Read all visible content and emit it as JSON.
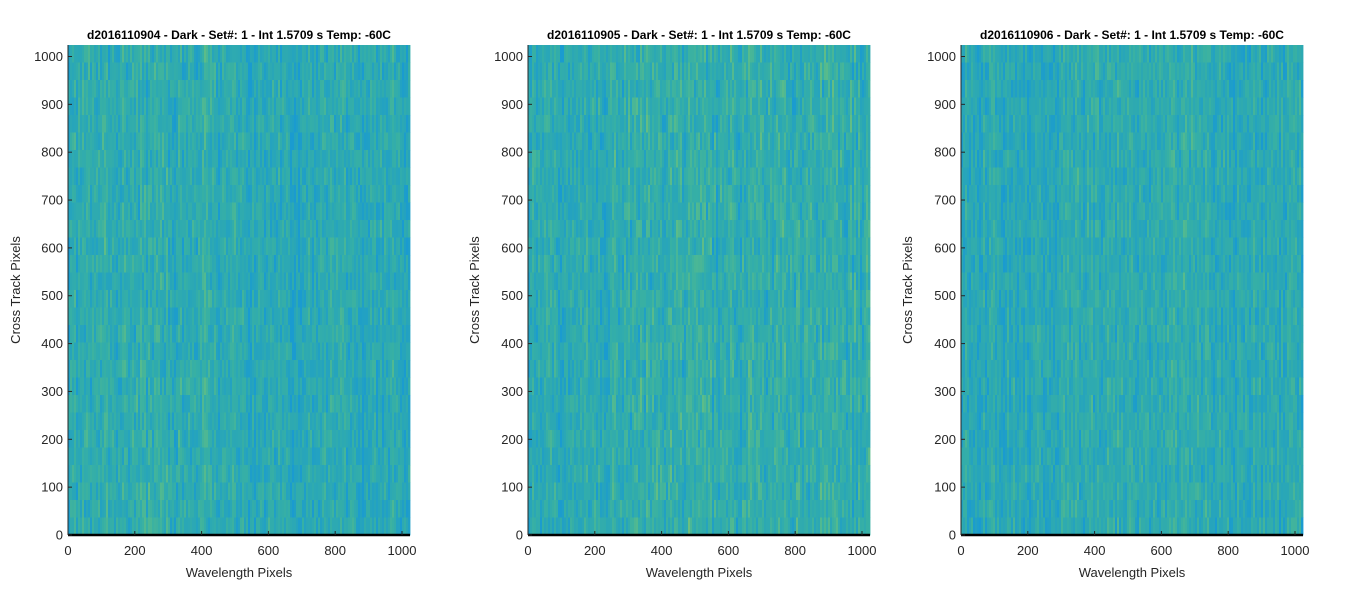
{
  "figure": {
    "background": "#ffffff"
  },
  "colors": {
    "blue": "#1a9bd0",
    "teal": "#2aa7b6",
    "aqua": "#37b0a4",
    "green": "#57bb8c",
    "yellow_green": "#83c36c",
    "axis": "#262626",
    "baseline": "#000000"
  },
  "chart_data": [
    {
      "type": "heatmap",
      "title": "d2016110904 - Dark - Set#: 1 - Int 1.5709 s Temp: -60C",
      "xlabel": "Wavelength Pixels",
      "ylabel": "Cross Track Pixels",
      "xlim": [
        0,
        1024
      ],
      "ylim": [
        0,
        1024
      ],
      "xticks": [
        0,
        200,
        400,
        600,
        800,
        1000
      ],
      "xtick_labels": [
        "0",
        "200",
        "400",
        "600",
        "800",
        "1000"
      ],
      "yticks": [
        0,
        100,
        200,
        300,
        400,
        500,
        600,
        700,
        800,
        900,
        1000
      ],
      "ytick_labels": [
        "0",
        "100",
        "200",
        "300",
        "400",
        "500",
        "600",
        "700",
        "800",
        "900",
        "1000"
      ],
      "colormap": "parula",
      "warm_region_x": [
        50,
        450
      ],
      "intensity": 0.55,
      "seed": 11
    },
    {
      "type": "heatmap",
      "title": "d2016110905 - Dark - Set#: 1 - Int 1.5709 s Temp: -60C",
      "xlabel": "Wavelength Pixels",
      "ylabel": "Cross Track Pixels",
      "xlim": [
        0,
        1024
      ],
      "ylim": [
        0,
        1024
      ],
      "xticks": [
        0,
        200,
        400,
        600,
        800,
        1000
      ],
      "xtick_labels": [
        "0",
        "200",
        "400",
        "600",
        "800",
        "1000"
      ],
      "yticks": [
        0,
        100,
        200,
        300,
        400,
        500,
        600,
        700,
        800,
        900,
        1000
      ],
      "ytick_labels": [
        "0",
        "100",
        "200",
        "300",
        "400",
        "500",
        "600",
        "700",
        "800",
        "900",
        "1000"
      ],
      "colormap": "parula",
      "warm_region_x": [
        250,
        1024
      ],
      "intensity": 0.7,
      "seed": 23
    },
    {
      "type": "heatmap",
      "title": "d2016110906 - Dark - Set#: 1 - Int 1.5709 s Temp: -60C",
      "xlabel": "Wavelength Pixels",
      "ylabel": "Cross Track Pixels",
      "xlim": [
        0,
        1024
      ],
      "ylim": [
        0,
        1024
      ],
      "xticks": [
        0,
        200,
        400,
        600,
        800,
        1000
      ],
      "xtick_labels": [
        "0",
        "200",
        "400",
        "600",
        "800",
        "1000"
      ],
      "yticks": [
        0,
        100,
        200,
        300,
        400,
        500,
        600,
        700,
        800,
        900,
        1000
      ],
      "ytick_labels": [
        "0",
        "100",
        "200",
        "300",
        "400",
        "500",
        "600",
        "700",
        "800",
        "900",
        "1000"
      ],
      "colormap": "parula",
      "warm_region_x": [
        300,
        800
      ],
      "intensity": 0.35,
      "seed": 37
    }
  ]
}
